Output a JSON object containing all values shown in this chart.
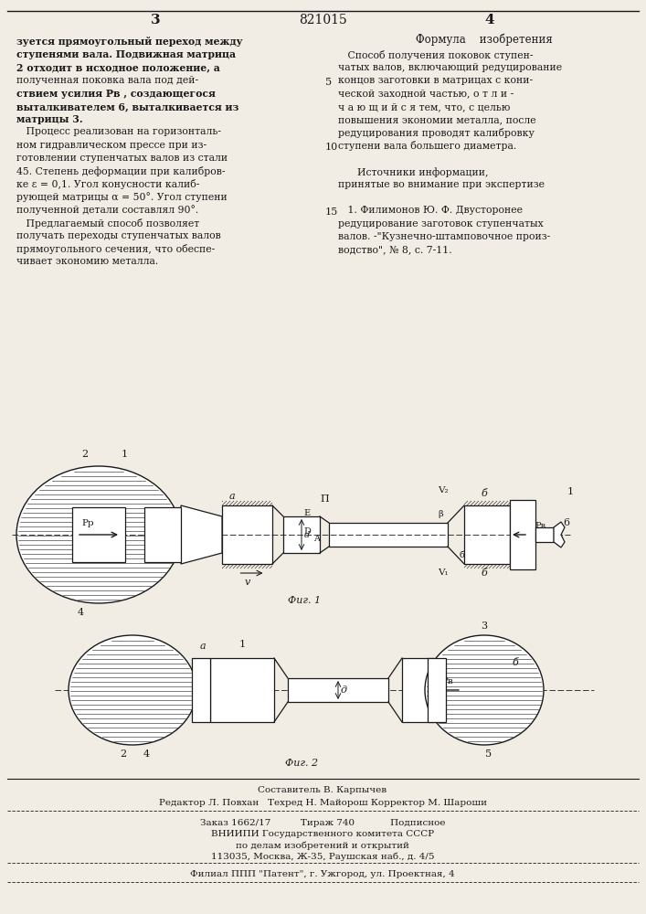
{
  "bg_color": "#f2ede4",
  "text_color": "#1a1a1a",
  "page_number_left": "3",
  "page_number_center": "821015",
  "page_number_right": "4",
  "left_col_lines": [
    [
      "bold",
      "зуется прямоугольный переход между"
    ],
    [
      "bold",
      "ступенями вала. Подвижная матрица"
    ],
    [
      "bold",
      "2 отходит в исходное положение, а"
    ],
    [
      "normal",
      "полученная поковка вала под дей-"
    ],
    [
      "bold",
      "ствием усилия Рв , создающегося"
    ],
    [
      "bold",
      "выталкивателем 6, выталкивается из"
    ],
    [
      "bold",
      "матрицы 3."
    ],
    [
      "normal",
      "   Процесс реализован на горизонталь-"
    ],
    [
      "normal",
      "ном гидравлическом прессе при из-"
    ],
    [
      "normal",
      "готовлении ступенчатых валов из стали"
    ],
    [
      "normal",
      "45. Степень деформации при калибров-"
    ],
    [
      "normal",
      "ке ε = 0,1. Угол конусности калиб-"
    ],
    [
      "normal",
      "рующей матрицы α = 50°. Угол ступени"
    ],
    [
      "normal",
      "полученной детали составлял 90°."
    ],
    [
      "normal",
      "   Предлагаемый способ позволяет"
    ],
    [
      "normal",
      "получать переходы ступенчатых валов"
    ],
    [
      "normal",
      "прямоугольного сечения, что обеспе-"
    ],
    [
      "normal",
      "чивает экономию металла."
    ]
  ],
  "right_col_title": "Формула    изобретения",
  "right_col_lines": [
    "   Способ получения поковок ступен-",
    "чатых валов, включающий редуцирование",
    "концов заготовки в матрицах с кони-",
    "ческой заходной частью, о т л и -",
    "ч а ю щ и й с я тем, что, с целью",
    "повышения экономии металла, после",
    "редуцирования проводят калибровку",
    "ступени вала большего диаметра.",
    "",
    "      Источники информации,",
    "принятые во внимание при экспертизе",
    "",
    "   1. Филимонов Ю. Ф. Двусторонее",
    "редуцирование заготовок ступенчатых",
    "валов. -\"Кузнечно-штамповочное произ-",
    "водство\", № 8, с. 7-11."
  ],
  "line_numbers": [
    [
      4,
      "5"
    ],
    [
      9,
      "10"
    ],
    [
      14,
      "15"
    ]
  ],
  "footer_line1": "Составитель В. Карпычев",
  "footer_line2": "Редактор Л. Повхан   Техред Н. Майорош Корректор М. Шароши",
  "footer_line3": "Заказ 1662/17          Тираж 740            Подписное",
  "footer_line4": "ВНИИПИ Государственного комитета СССР",
  "footer_line5": "по делам изобретений и открытий",
  "footer_line6": "113035, Москва, Ж-35, Раушская наб., д. 4/5",
  "footer_line7": "Филиал ППП \"Патент\", г. Ужгород, ул. Проектная, 4"
}
